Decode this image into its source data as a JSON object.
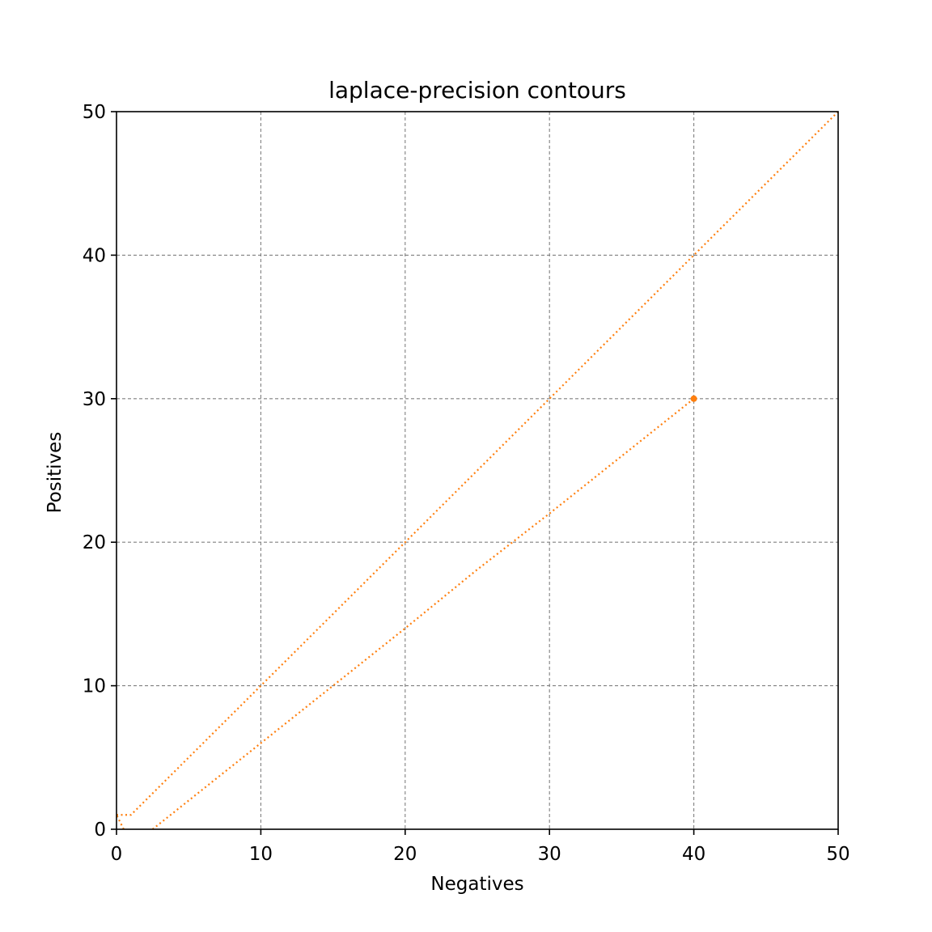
{
  "chart_data": {
    "type": "line",
    "title": "laplace-precision contours",
    "xlabel": "Negatives",
    "ylabel": "Positives",
    "xlim": [
      0,
      50
    ],
    "ylim": [
      0,
      50
    ],
    "xticks": [
      "0",
      "10",
      "20",
      "30",
      "40",
      "50"
    ],
    "yticks": [
      "0",
      "10",
      "20",
      "30",
      "40",
      "50"
    ],
    "grid": true,
    "series": [
      {
        "color": "#ff7f0e",
        "style": "dotted",
        "points": [
          [
            0,
            1
          ],
          [
            1,
            1
          ],
          [
            2,
            2
          ],
          [
            10,
            10
          ],
          [
            20,
            20
          ],
          [
            30,
            30
          ],
          [
            40,
            40
          ],
          [
            50,
            50
          ]
        ]
      },
      {
        "color": "#ff7f0e",
        "style": "dotted",
        "points": [
          [
            0.5,
            0
          ],
          [
            0,
            1
          ]
        ]
      },
      {
        "color": "#ff7f0e",
        "style": "dotted",
        "points": [
          [
            2.5,
            0
          ],
          [
            5,
            2
          ],
          [
            10,
            6
          ],
          [
            15,
            10
          ],
          [
            20,
            14
          ],
          [
            25,
            18.1
          ],
          [
            30,
            22
          ],
          [
            35,
            26
          ],
          [
            40,
            30
          ]
        ]
      }
    ],
    "marker_points": [
      {
        "x": 40,
        "y": 30,
        "color": "#ff7f0e"
      }
    ]
  }
}
